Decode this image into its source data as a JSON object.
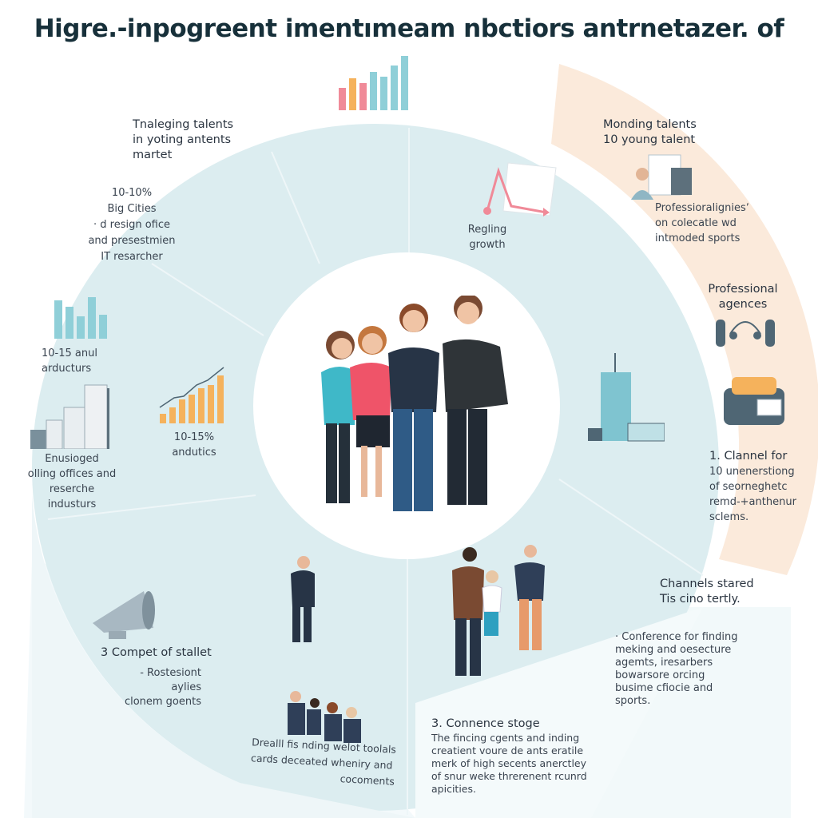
{
  "title": "Higre.-inpogreent imentımeam nbctiors antrnetazer. of",
  "colors": {
    "ring": "#dcedf0",
    "inner": "#ffffff",
    "peach": "#fbeadb",
    "accent_pink": "#f08a98",
    "accent_orange": "#f5b25c",
    "accent_teal": "#8fcfd8",
    "slate": "#4f6674"
  },
  "top_left": {
    "heading": [
      "Tnaleging talents",
      "in yoting antents",
      "martet"
    ],
    "lines": [
      "10-10%",
      "Big Cities",
      "· d resign ofice",
      "and presestmien",
      "IT resarcher"
    ]
  },
  "left_bars": {
    "icon": "bar-chart-icon",
    "lines": [
      "10-15 anul",
      "arducturs"
    ]
  },
  "left_buildings": {
    "icon": "buildings-icon",
    "lines": [
      "Enusioged",
      "olling offices and",
      "reserche industurs"
    ]
  },
  "growth": {
    "icon": "growth-chart-icon",
    "lines": [
      "10-15%",
      "andutics"
    ]
  },
  "rising": {
    "icon": "growth-arrow-icon",
    "lines": [
      "Regling",
      "growth"
    ]
  },
  "top_right": {
    "heading": [
      "Monding talents",
      "10 young talent"
    ],
    "icon": "resume-icon",
    "lines": [
      "Professioraligniesʼ",
      "on colecatle wd",
      "intmoded sports"
    ]
  },
  "agencies": {
    "heading": [
      "Professional",
      "agences"
    ],
    "icon": "headset-icon"
  },
  "channel": {
    "icon": "server-icon",
    "heading": "1. Clannel for",
    "lines": [
      "10 unenerstiong",
      "of seorneghetc",
      "remd-+anthenur",
      "sclems."
    ]
  },
  "tower": {
    "icon": "office-tower-icon"
  },
  "channels_stared": {
    "heading": [
      "Channels stared",
      "Tis cino tertly."
    ],
    "lines": [
      "· Conference for finding",
      "meking and oesecture",
      "agemts, iresarbers",
      "bowarsore orcing",
      "busime cfiocie and",
      "sports."
    ]
  },
  "compet": {
    "icon": "megaphone-icon",
    "heading": "3 Compet of stallet",
    "lines": [
      "- Rostesiont aylies",
      "clonem goents"
    ]
  },
  "meeting": {
    "icon": "business-group-icon",
    "lines": [
      "Drealll fis nding welot toolals",
      "cards deceated wheniry and",
      "cocoments"
    ]
  },
  "connence": {
    "heading": "3. Connence stoge",
    "lines": [
      "The fincing cgents and inding",
      "creatient voure de ants eratile",
      "merk of high secents anerctley",
      "of snur weke threrenent rcunrd",
      "apicities."
    ]
  }
}
